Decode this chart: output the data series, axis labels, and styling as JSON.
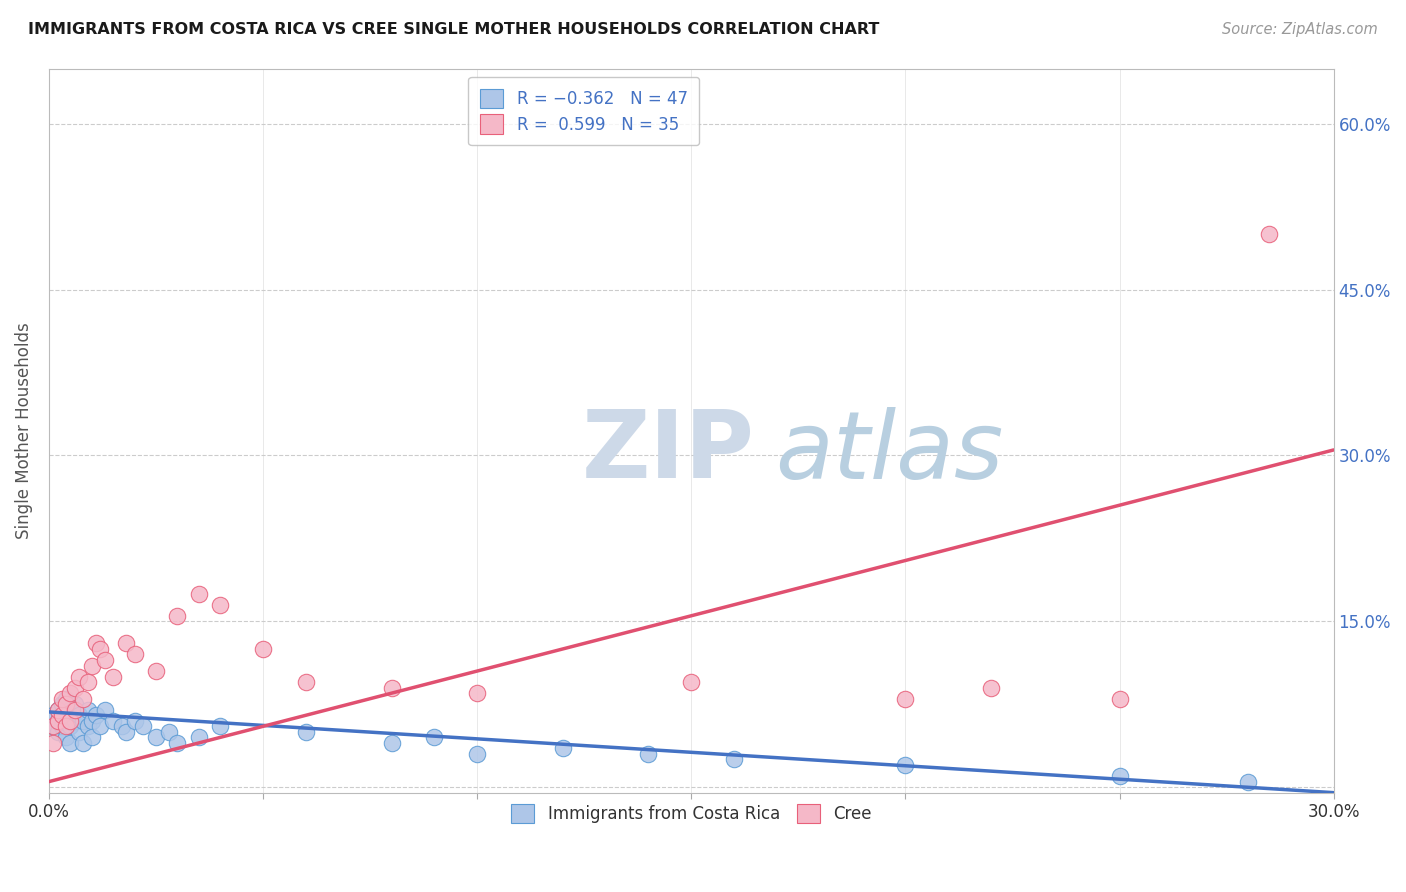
{
  "title": "IMMIGRANTS FROM COSTA RICA VS CREE SINGLE MOTHER HOUSEHOLDS CORRELATION CHART",
  "source": "Source: ZipAtlas.com",
  "ylabel": "Single Mother Households",
  "x_min": 0.0,
  "x_max": 0.3,
  "y_min": -0.005,
  "y_max": 0.65,
  "y_ticks": [
    0.0,
    0.15,
    0.3,
    0.45,
    0.6
  ],
  "y_tick_labels": [
    "",
    "15.0%",
    "30.0%",
    "45.0%",
    "60.0%"
  ],
  "blue_fill": "#aec6e8",
  "pink_fill": "#f5b8c8",
  "blue_edge": "#5b9bd5",
  "pink_edge": "#e8607a",
  "blue_line_color": "#4472c4",
  "pink_line_color": "#e05070",
  "watermark_ZIP_color": "#cdd9e8",
  "watermark_atlas_color": "#b8cfe0",
  "grid_color": "#cccccc",
  "background_color": "#ffffff",
  "title_color": "#1a1a1a",
  "source_color": "#999999",
  "axis_label_color": "#555555",
  "tick_color": "#4472c4",
  "blue_line_x0": 0.0,
  "blue_line_y0": 0.068,
  "blue_line_x1": 0.3,
  "blue_line_y1": -0.005,
  "pink_line_x0": 0.0,
  "pink_line_y0": 0.005,
  "pink_line_x1": 0.3,
  "pink_line_y1": 0.305,
  "blue_scatter_x": [
    0.001,
    0.001,
    0.002,
    0.002,
    0.002,
    0.003,
    0.003,
    0.003,
    0.004,
    0.004,
    0.004,
    0.005,
    0.005,
    0.005,
    0.006,
    0.006,
    0.007,
    0.007,
    0.008,
    0.008,
    0.009,
    0.009,
    0.01,
    0.01,
    0.011,
    0.012,
    0.013,
    0.015,
    0.017,
    0.018,
    0.02,
    0.022,
    0.025,
    0.028,
    0.03,
    0.035,
    0.04,
    0.06,
    0.08,
    0.09,
    0.1,
    0.12,
    0.14,
    0.16,
    0.2,
    0.25,
    0.28
  ],
  "blue_scatter_y": [
    0.055,
    0.065,
    0.06,
    0.07,
    0.05,
    0.075,
    0.055,
    0.065,
    0.06,
    0.08,
    0.045,
    0.07,
    0.055,
    0.04,
    0.06,
    0.075,
    0.065,
    0.05,
    0.06,
    0.04,
    0.055,
    0.07,
    0.06,
    0.045,
    0.065,
    0.055,
    0.07,
    0.06,
    0.055,
    0.05,
    0.06,
    0.055,
    0.045,
    0.05,
    0.04,
    0.045,
    0.055,
    0.05,
    0.04,
    0.045,
    0.03,
    0.035,
    0.03,
    0.025,
    0.02,
    0.01,
    0.005
  ],
  "pink_scatter_x": [
    0.001,
    0.001,
    0.002,
    0.002,
    0.003,
    0.003,
    0.004,
    0.004,
    0.005,
    0.005,
    0.006,
    0.006,
    0.007,
    0.008,
    0.009,
    0.01,
    0.011,
    0.012,
    0.013,
    0.015,
    0.018,
    0.02,
    0.025,
    0.03,
    0.035,
    0.04,
    0.05,
    0.06,
    0.08,
    0.1,
    0.15,
    0.2,
    0.22,
    0.25,
    0.285
  ],
  "pink_scatter_y": [
    0.04,
    0.055,
    0.06,
    0.07,
    0.065,
    0.08,
    0.055,
    0.075,
    0.06,
    0.085,
    0.07,
    0.09,
    0.1,
    0.08,
    0.095,
    0.11,
    0.13,
    0.125,
    0.115,
    0.1,
    0.13,
    0.12,
    0.105,
    0.155,
    0.175,
    0.165,
    0.125,
    0.095,
    0.09,
    0.085,
    0.095,
    0.08,
    0.09,
    0.08,
    0.5
  ]
}
